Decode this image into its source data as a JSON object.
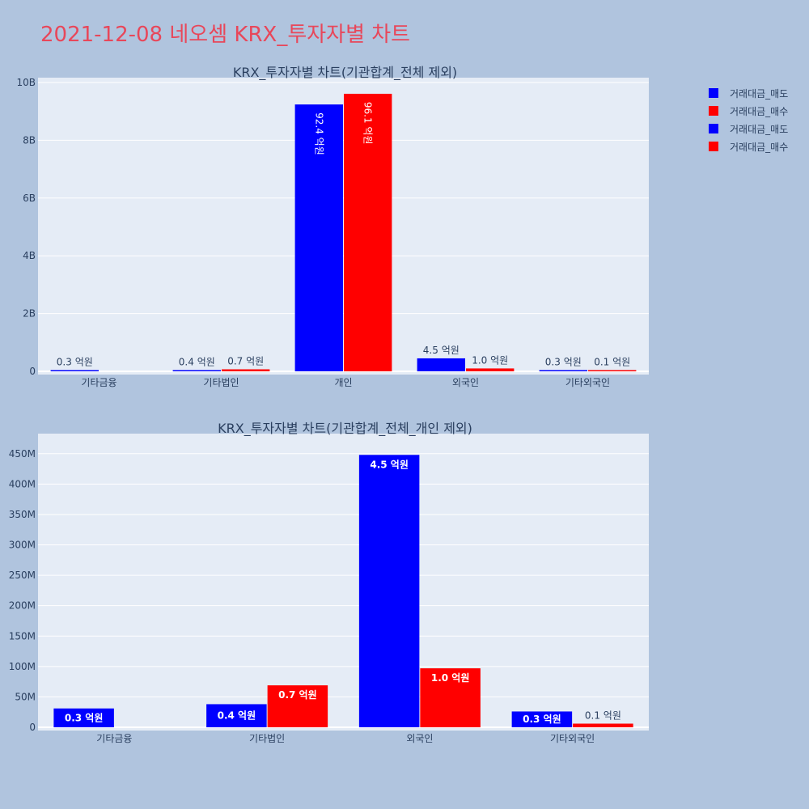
{
  "page": {
    "title": "2021-12-08 네오셈 KRX_투자자별 차트"
  },
  "legend": [
    {
      "label": "거래대금_매도",
      "color": "#0000ff"
    },
    {
      "label": "거래대금_매수",
      "color": "#ff0000"
    },
    {
      "label": "거래대금_매도",
      "color": "#0000ff"
    },
    {
      "label": "거래대금_매수",
      "color": "#ff0000"
    }
  ],
  "chart_data": [
    {
      "type": "bar",
      "title": "KRX_투자자별 차트(기관합계_전체 제외)",
      "categories": [
        "기타금융",
        "기타법인",
        "개인",
        "외국인",
        "기타외국인"
      ],
      "ylim": [
        0,
        10000000000
      ],
      "yticks": [
        0,
        2000000000,
        4000000000,
        6000000000,
        8000000000,
        10000000000
      ],
      "ytick_labels": [
        "0",
        "2B",
        "4B",
        "6B",
        "8B",
        "10B"
      ],
      "grid": true,
      "series": [
        {
          "name": "거래대금_매도",
          "color": "#0000ff",
          "values": [
            30000000,
            40000000,
            9240000000,
            450000000,
            30000000
          ],
          "labels": [
            "0.3 억원",
            "0.4 억원",
            "92.4 억원",
            "4.5 억원",
            "0.3 억원"
          ]
        },
        {
          "name": "거래대금_매수",
          "color": "#ff0000",
          "values": [
            0,
            70000000,
            9610000000,
            100000000,
            10000000
          ],
          "labels": [
            "",
            "0.7 억원",
            "96.1 억원",
            "1.0 억원",
            "0.1 억원"
          ]
        }
      ]
    },
    {
      "type": "bar",
      "title": "KRX_투자자별 차트(기관합계_전체_개인 제외)",
      "categories": [
        "기타금융",
        "기타법인",
        "외국인",
        "기타외국인"
      ],
      "ylim": [
        0,
        475000000
      ],
      "yticks": [
        0,
        50000000,
        100000000,
        150000000,
        200000000,
        250000000,
        300000000,
        350000000,
        400000000,
        450000000
      ],
      "ytick_labels": [
        "0",
        "50M",
        "100M",
        "150M",
        "200M",
        "250M",
        "300M",
        "350M",
        "400M",
        "450M"
      ],
      "grid": true,
      "series": [
        {
          "name": "거래대금_매도",
          "color": "#0000ff",
          "values": [
            31000000,
            38000000,
            448000000,
            26000000
          ],
          "labels": [
            "0.3 억원",
            "0.4 억원",
            "4.5 억원",
            "0.3 억원"
          ]
        },
        {
          "name": "거래대금_매수",
          "color": "#ff0000",
          "values": [
            0,
            69000000,
            97000000,
            6000000
          ],
          "labels": [
            "",
            "0.7 억원",
            "1.0 억원",
            "0.1 억원"
          ]
        }
      ]
    }
  ]
}
